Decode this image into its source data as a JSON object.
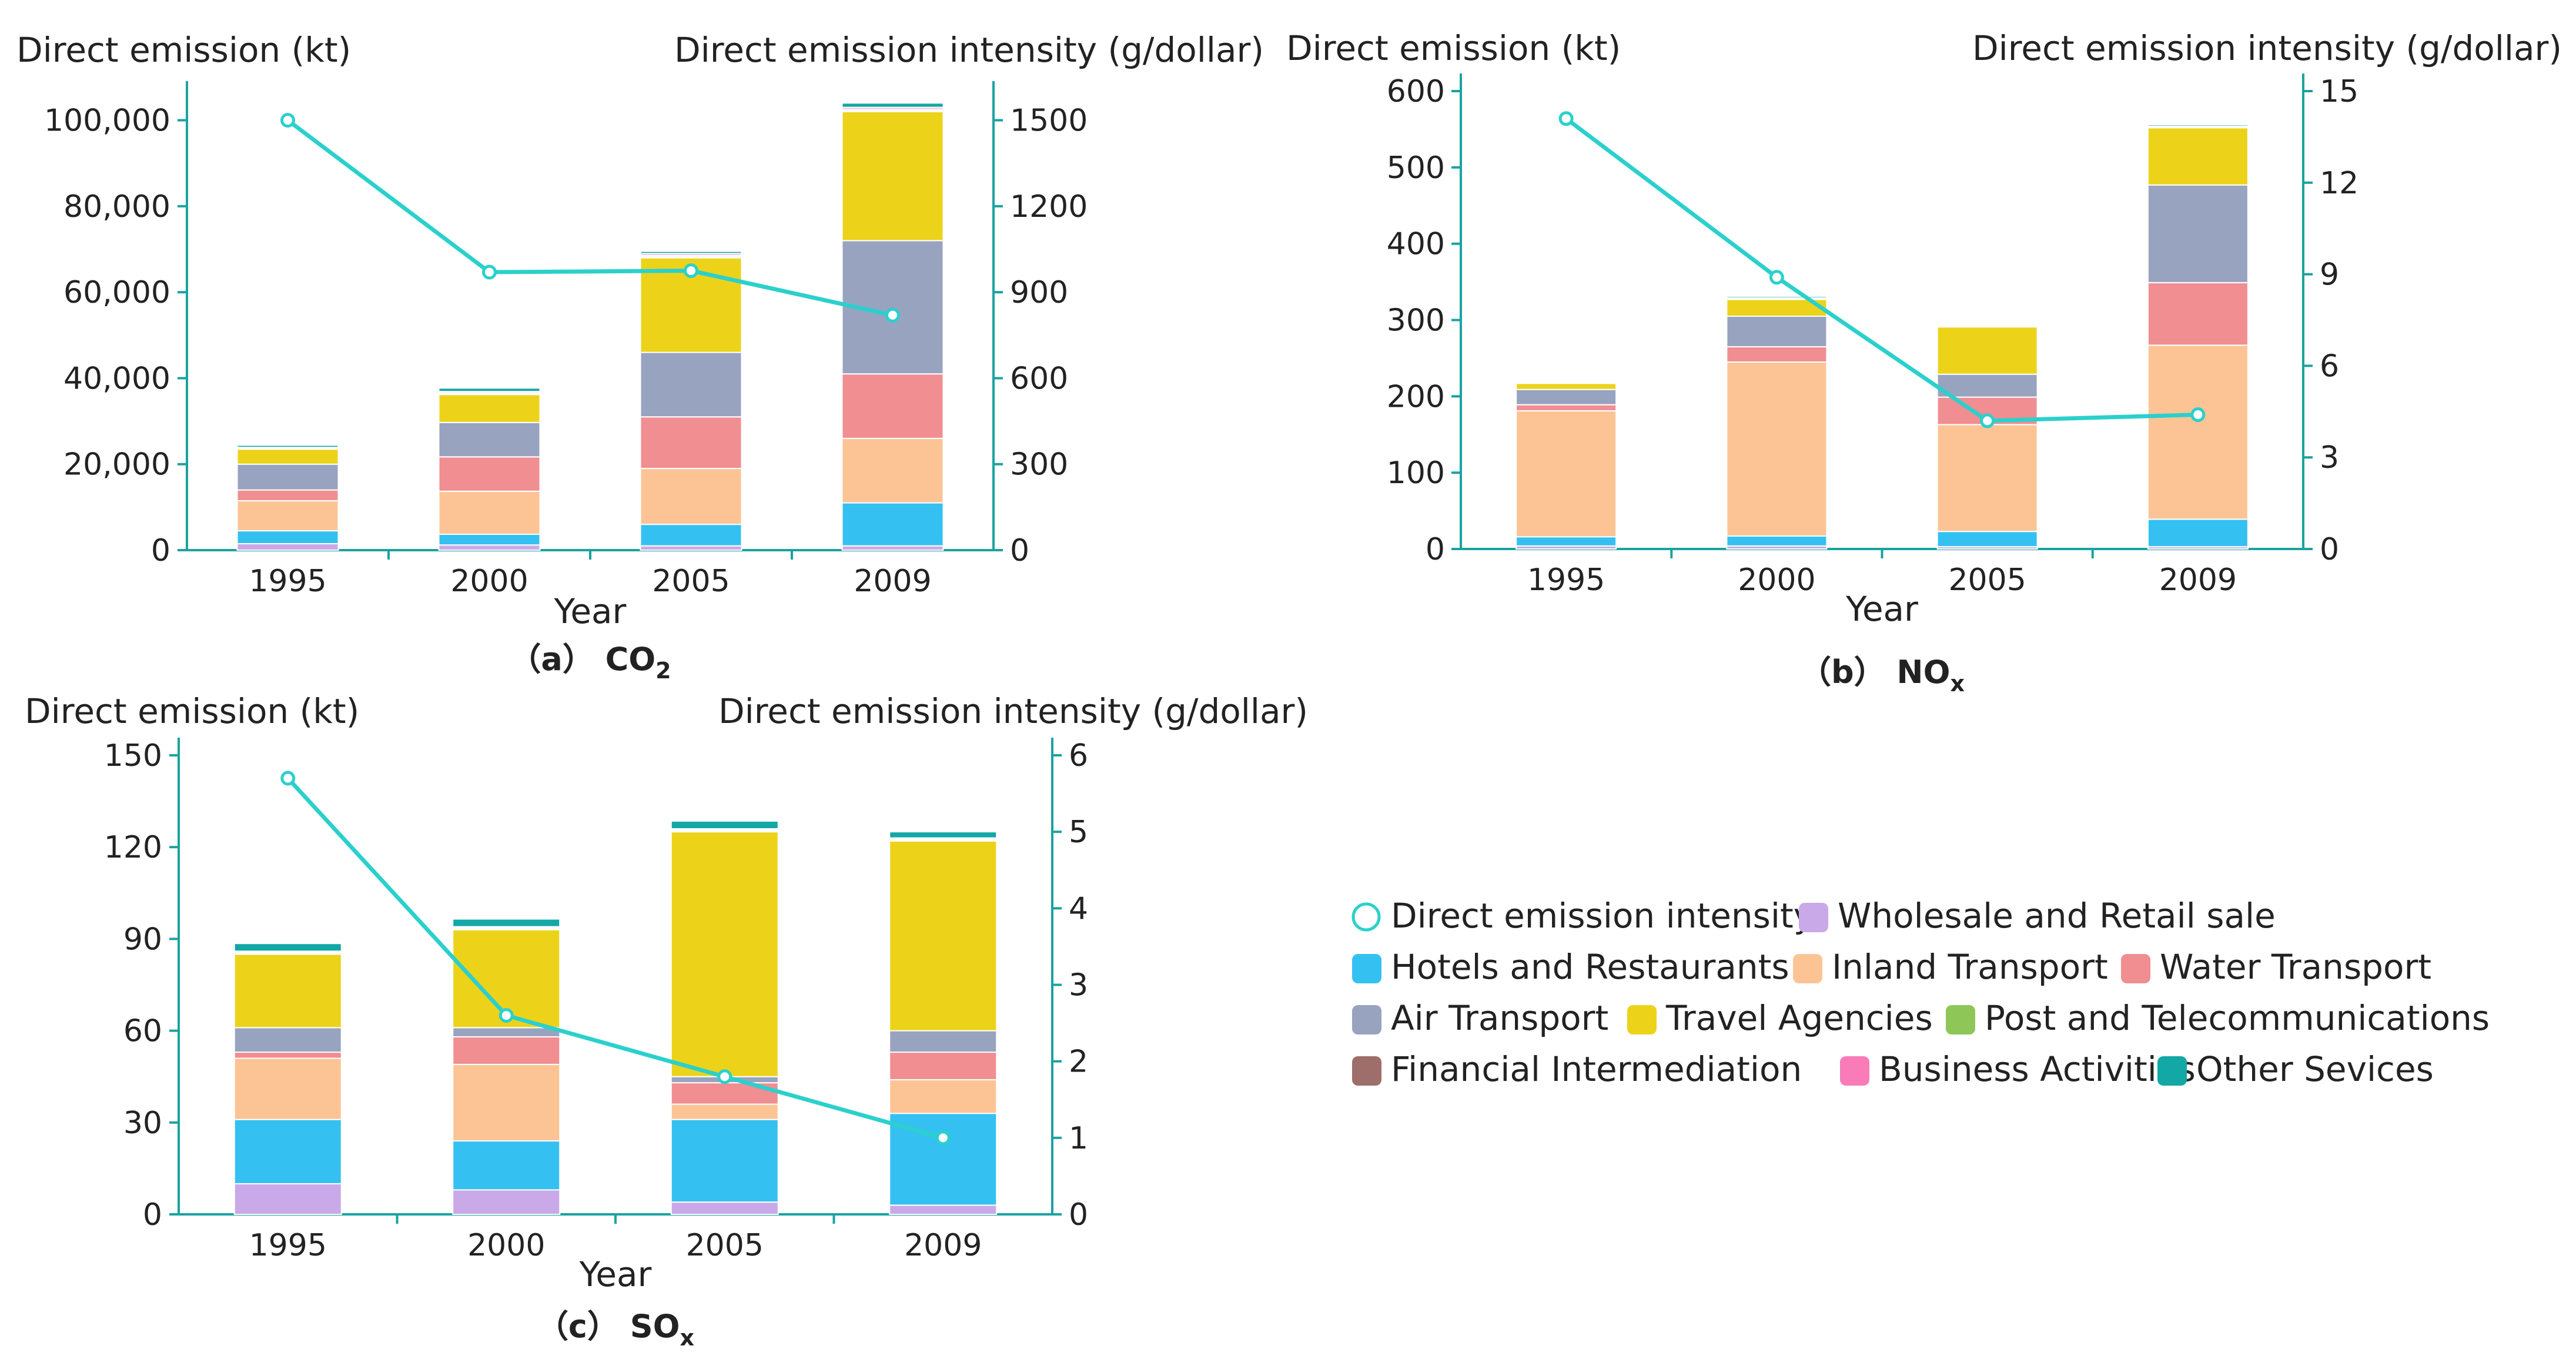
{
  "colors": {
    "axis": "#1aa2a0",
    "line": "#2bd0cc",
    "text": "#222222",
    "series": {
      "Wholesale and Retail sale": "#c9a9e8",
      "Hotels and Restaurants": "#34c1f1",
      "Inland Transport": "#fcc495",
      "Water Transport": "#f08e92",
      "Air Transport": "#98a3c0",
      "Travel Agencies": "#ecd31a",
      "Post and Telecommunications": "#8ec657",
      "Financial Intermediation": "#9e6e6a",
      "Business Activities": "#f97bb8",
      "Other Sevices": "#13a7a5"
    }
  },
  "legend": {
    "items": [
      "Direct emission intensity",
      "Wholesale and Retail sale",
      "Hotels and Restaurants",
      "Inland Transport",
      "Water Transport",
      "Air Transport",
      "Travel Agencies",
      "Post and Telecommunications",
      "Financial Intermediation",
      "Business Activities",
      "Other Sevices"
    ]
  },
  "chart_data": [
    {
      "type": "bar",
      "stacked": true,
      "secondary_line": true,
      "caption": "（a） CO2",
      "caption_prefix": "（a）",
      "caption_main": "CO",
      "caption_sub": "2",
      "xlabel": "Year",
      "ylabel": "Direct emission (kt)",
      "y2label": "Direct emission intensity (g/dollar)",
      "categories": [
        "1995",
        "2000",
        "2005",
        "2009"
      ],
      "ylim": [
        0,
        105000
      ],
      "y2lim": [
        0,
        1575
      ],
      "yticks": [
        0,
        20000,
        40000,
        60000,
        80000,
        100000
      ],
      "ytick_labels": [
        "0",
        "20,000",
        "40,000",
        "60,000",
        "80,000",
        "100,000"
      ],
      "y2ticks": [
        0,
        300,
        600,
        900,
        1200,
        1500
      ],
      "y2tick_labels": [
        "0",
        "300",
        "600",
        "900",
        "1200",
        "1500"
      ],
      "series": [
        {
          "name": "Wholesale and Retail sale",
          "values": [
            1500,
            1200,
            1000,
            1000
          ]
        },
        {
          "name": "Hotels and Restaurants",
          "values": [
            3000,
            2500,
            5000,
            10000
          ]
        },
        {
          "name": "Inland Transport",
          "values": [
            7000,
            10000,
            13000,
            15000
          ]
        },
        {
          "name": "Water Transport",
          "values": [
            2500,
            8000,
            12000,
            15000
          ]
        },
        {
          "name": "Air Transport",
          "values": [
            6000,
            8000,
            15000,
            31000
          ]
        },
        {
          "name": "Travel Agencies",
          "values": [
            3500,
            6500,
            22000,
            30000
          ]
        },
        {
          "name": "Post and Telecommunications",
          "values": [
            100,
            200,
            300,
            300
          ]
        },
        {
          "name": "Financial Intermediation",
          "values": [
            100,
            200,
            300,
            300
          ]
        },
        {
          "name": "Business Activities",
          "values": [
            200,
            300,
            400,
            400
          ]
        },
        {
          "name": "Other Sevices",
          "values": [
            500,
            800,
            500,
            1000
          ]
        }
      ],
      "line": {
        "name": "Direct emission intensity",
        "values": [
          1500,
          970,
          975,
          820
        ]
      }
    },
    {
      "type": "bar",
      "stacked": true,
      "secondary_line": true,
      "caption": "（b） NOx",
      "caption_prefix": "（b）",
      "caption_main": "NO",
      "caption_sub": "x",
      "xlabel": "Year",
      "ylabel": "Direct emission (kt)",
      "y2label": "Direct emission intensity (g/dollar)",
      "categories": [
        "1995",
        "2000",
        "2005",
        "2009"
      ],
      "ylim": [
        0,
        600
      ],
      "y2lim": [
        0,
        15
      ],
      "yticks": [
        0,
        100,
        200,
        300,
        400,
        500,
        600
      ],
      "ytick_labels": [
        "0",
        "100",
        "200",
        "300",
        "400",
        "500",
        "600"
      ],
      "y2ticks": [
        0,
        3,
        6,
        9,
        12,
        15
      ],
      "y2tick_labels": [
        "0",
        "3",
        "6",
        "9",
        "12",
        "15"
      ],
      "series": [
        {
          "name": "Wholesale and Retail sale",
          "values": [
            4,
            4,
            3,
            3
          ]
        },
        {
          "name": "Hotels and Restaurants",
          "values": [
            12,
            13,
            20,
            36
          ]
        },
        {
          "name": "Inland Transport",
          "values": [
            165,
            228,
            140,
            228
          ]
        },
        {
          "name": "Water Transport",
          "values": [
            8,
            20,
            36,
            82
          ]
        },
        {
          "name": "Air Transport",
          "values": [
            20,
            40,
            30,
            128
          ]
        },
        {
          "name": "Travel Agencies",
          "values": [
            8,
            22,
            62,
            75
          ]
        },
        {
          "name": "Post and Telecommunications",
          "values": [
            0.5,
            0.5,
            0.5,
            0.5
          ]
        },
        {
          "name": "Financial Intermediation",
          "values": [
            0.5,
            0.5,
            0.5,
            0.5
          ]
        },
        {
          "name": "Business Activities",
          "values": [
            1,
            1,
            1,
            1
          ]
        },
        {
          "name": "Other Sevices",
          "values": [
            1,
            2,
            1,
            2
          ]
        }
      ],
      "line": {
        "name": "Direct emission intensity",
        "values": [
          14.1,
          8.9,
          4.2,
          4.4
        ]
      }
    },
    {
      "type": "bar",
      "stacked": true,
      "secondary_line": true,
      "caption": "（c） SOx",
      "caption_prefix": "（c）",
      "caption_main": "SO",
      "caption_sub": "x",
      "xlabel": "Year",
      "ylabel": "Direct emission (kt)",
      "y2label": "Direct emission intensity (g/dollar)",
      "categories": [
        "1995",
        "2000",
        "2005",
        "2009"
      ],
      "ylim": [
        0,
        150
      ],
      "y2lim": [
        0,
        6
      ],
      "yticks": [
        0,
        30,
        60,
        90,
        120,
        150
      ],
      "ytick_labels": [
        "0",
        "30",
        "60",
        "90",
        "120",
        "150"
      ],
      "y2ticks": [
        0,
        1,
        2,
        3,
        4,
        5,
        6
      ],
      "y2tick_labels": [
        "0",
        "1",
        "2",
        "3",
        "4",
        "5",
        "6"
      ],
      "series": [
        {
          "name": "Wholesale and Retail sale",
          "values": [
            10,
            8,
            4,
            3
          ]
        },
        {
          "name": "Hotels and Restaurants",
          "values": [
            21,
            16,
            27,
            30
          ]
        },
        {
          "name": "Inland Transport",
          "values": [
            20,
            25,
            5,
            11
          ]
        },
        {
          "name": "Water Transport",
          "values": [
            2,
            9,
            7,
            9
          ]
        },
        {
          "name": "Air Transport",
          "values": [
            8,
            3,
            2,
            7
          ]
        },
        {
          "name": "Travel Agencies",
          "values": [
            24,
            32,
            80,
            62
          ]
        },
        {
          "name": "Post and Telecommunications",
          "values": [
            0.3,
            0.3,
            0.3,
            0.3
          ]
        },
        {
          "name": "Financial Intermediation",
          "values": [
            0.3,
            0.3,
            0.3,
            0.3
          ]
        },
        {
          "name": "Business Activities",
          "values": [
            0.4,
            0.4,
            0.4,
            0.4
          ]
        },
        {
          "name": "Other Sevices",
          "values": [
            2.5,
            2.5,
            2.5,
            2
          ]
        }
      ],
      "line": {
        "name": "Direct emission intensity",
        "values": [
          5.7,
          2.6,
          1.8,
          1.0
        ]
      }
    }
  ]
}
